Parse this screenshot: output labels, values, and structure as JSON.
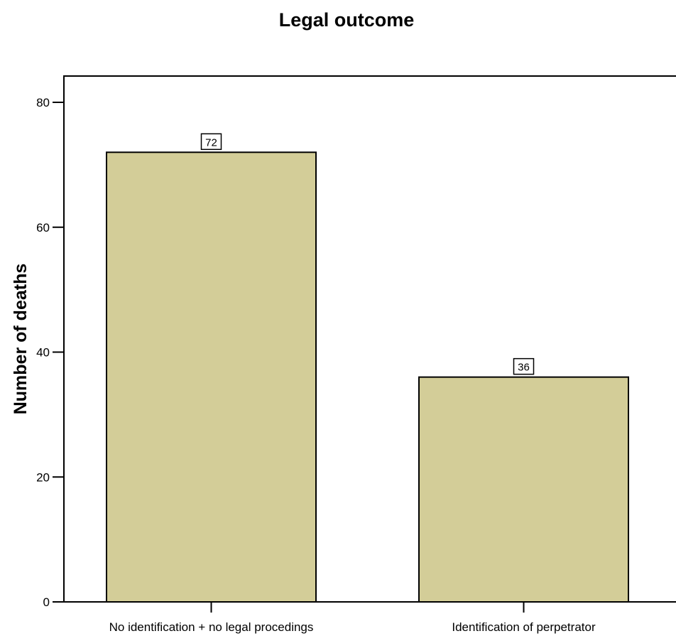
{
  "chart_data": {
    "type": "bar",
    "title": "Legal outcome",
    "xlabel": "",
    "ylabel": "Number of deaths",
    "categories": [
      "No identification + no legal procedings",
      "Identification of perpetrator"
    ],
    "values": [
      72,
      36
    ],
    "data_labels": [
      "72",
      "36"
    ],
    "ylim": [
      0,
      80
    ],
    "yticks": [
      0,
      20,
      40,
      60,
      80
    ],
    "ytick_labels": [
      "0",
      "20",
      "40",
      "60",
      "80"
    ],
    "grid": false,
    "legend": "none",
    "bar_color": "#d3cd98",
    "edge_color": "#000000"
  }
}
